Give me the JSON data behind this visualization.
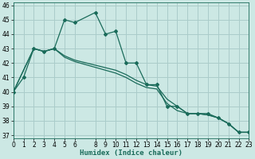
{
  "xlabel": "Humidex (Indice chaleur)",
  "bg_color": "#cce8e4",
  "grid_color": "#aaccca",
  "line_color": "#1a6b5a",
  "line1_x": [
    0,
    1,
    2,
    3,
    4,
    5,
    6,
    8,
    9,
    10,
    11,
    12,
    13,
    14,
    15,
    16,
    17,
    18,
    19,
    20,
    21,
    22,
    23
  ],
  "line1_y": [
    40,
    41,
    43,
    42.8,
    43,
    45,
    44.8,
    45.5,
    44,
    44.2,
    42,
    42,
    40.5,
    40.5,
    39,
    39,
    38.5,
    38.5,
    38.5,
    38.2,
    37.8,
    37.2,
    37.2
  ],
  "line2_x": [
    0,
    2,
    3,
    4,
    5,
    6,
    10,
    11,
    12,
    13,
    14,
    15,
    16,
    17,
    18,
    19,
    20,
    21,
    22,
    23
  ],
  "line2_y": [
    40,
    43,
    42.8,
    43,
    42.5,
    42.2,
    41.5,
    41.2,
    40.8,
    40.5,
    40.4,
    39.5,
    39.0,
    38.5,
    38.5,
    38.4,
    38.2,
    37.8,
    37.2,
    37.2
  ],
  "line3_x": [
    0,
    2,
    3,
    4,
    5,
    6,
    10,
    11,
    12,
    13,
    14,
    15,
    16,
    17,
    18,
    19,
    20,
    21,
    22,
    23
  ],
  "line3_y": [
    40,
    43,
    42.8,
    43,
    42.4,
    42.1,
    41.3,
    41.0,
    40.6,
    40.3,
    40.2,
    39.2,
    38.7,
    38.5,
    38.5,
    38.4,
    38.2,
    37.8,
    37.2,
    37.2
  ],
  "xlim": [
    0,
    23
  ],
  "ylim": [
    36.8,
    46.2
  ],
  "xticks": [
    0,
    1,
    2,
    3,
    4,
    5,
    6,
    8,
    9,
    10,
    11,
    12,
    13,
    14,
    15,
    16,
    17,
    18,
    19,
    20,
    21,
    22,
    23
  ],
  "yticks": [
    37,
    38,
    39,
    40,
    41,
    42,
    43,
    44,
    45,
    46
  ]
}
